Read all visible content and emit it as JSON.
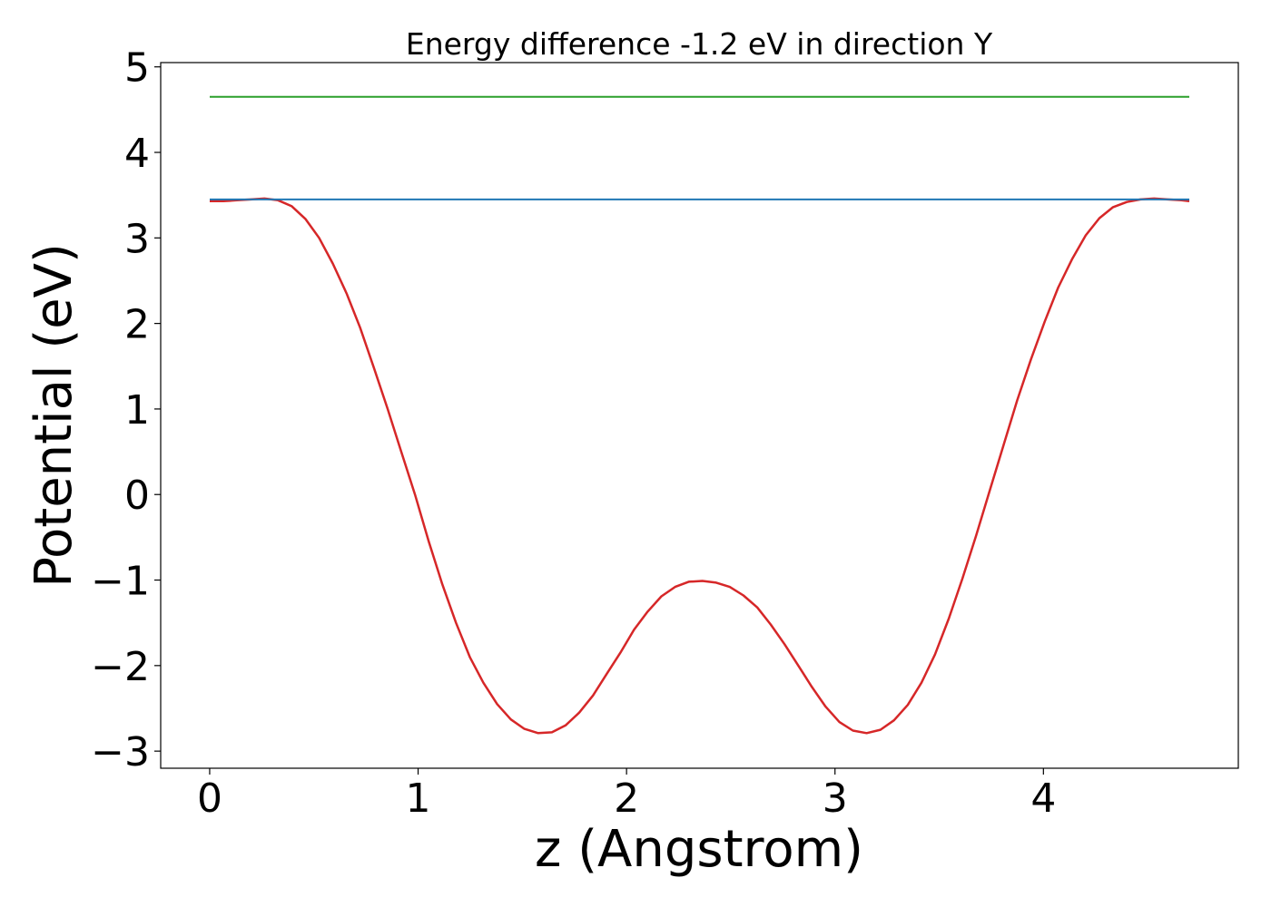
{
  "chart_data": {
    "type": "line",
    "title": "Energy difference -1.2 eV in direction Y",
    "xlabel": "z (Angstrom)",
    "ylabel": "Potential (eV)",
    "xlim": [
      -0.235,
      4.935
    ],
    "ylim": [
      -3.2,
      5.05
    ],
    "x_ticks": [
      0,
      1,
      2,
      3,
      4
    ],
    "y_ticks": [
      -3,
      -2,
      -1,
      0,
      1,
      2,
      3,
      4,
      5
    ],
    "x_tick_labels": [
      "0",
      "1",
      "2",
      "3",
      "4"
    ],
    "y_tick_labels": [
      "−3",
      "−2",
      "−1",
      "0",
      "1",
      "2",
      "3",
      "4",
      "5"
    ],
    "grid": false,
    "legend": "none",
    "series": [
      {
        "color": "#d62728",
        "x": [
          0,
          0.066,
          0.131,
          0.197,
          0.263,
          0.328,
          0.394,
          0.46,
          0.525,
          0.591,
          0.657,
          0.722,
          0.788,
          0.854,
          0.919,
          0.985,
          1.051,
          1.116,
          1.182,
          1.248,
          1.313,
          1.379,
          1.445,
          1.51,
          1.576,
          1.642,
          1.707,
          1.773,
          1.839,
          1.904,
          1.97,
          2.036,
          2.101,
          2.167,
          2.233,
          2.298,
          2.364,
          2.43,
          2.495,
          2.561,
          2.627,
          2.692,
          2.758,
          2.824,
          2.889,
          2.955,
          3.021,
          3.086,
          3.152,
          3.218,
          3.283,
          3.349,
          3.415,
          3.48,
          3.546,
          3.612,
          3.677,
          3.743,
          3.809,
          3.874,
          3.94,
          4.006,
          4.071,
          4.137,
          4.203,
          4.268,
          4.334,
          4.4,
          4.465,
          4.531,
          4.597,
          4.662,
          4.7
        ],
        "y": [
          3.43,
          3.43,
          3.44,
          3.45,
          3.46,
          3.44,
          3.37,
          3.22,
          3.0,
          2.7,
          2.35,
          1.95,
          1.48,
          1.0,
          0.5,
          0.0,
          -0.55,
          -1.05,
          -1.5,
          -1.9,
          -2.2,
          -2.45,
          -2.63,
          -2.74,
          -2.79,
          -2.78,
          -2.7,
          -2.55,
          -2.35,
          -2.1,
          -1.85,
          -1.58,
          -1.37,
          -1.19,
          -1.08,
          -1.02,
          -1.01,
          -1.03,
          -1.08,
          -1.18,
          -1.32,
          -1.52,
          -1.75,
          -2.0,
          -2.25,
          -2.48,
          -2.66,
          -2.76,
          -2.79,
          -2.75,
          -2.64,
          -2.46,
          -2.2,
          -1.87,
          -1.45,
          -0.98,
          -0.48,
          0.05,
          0.58,
          1.1,
          1.58,
          2.02,
          2.42,
          2.75,
          3.03,
          3.23,
          3.36,
          3.42,
          3.45,
          3.46,
          3.45,
          3.44,
          3.43
        ]
      },
      {
        "color": "#2ca02c",
        "x": [
          0,
          4.7
        ],
        "y": [
          4.65,
          4.65
        ]
      },
      {
        "color": "#1f77b4",
        "x": [
          0,
          4.7
        ],
        "y": [
          3.45,
          3.45
        ]
      }
    ]
  }
}
